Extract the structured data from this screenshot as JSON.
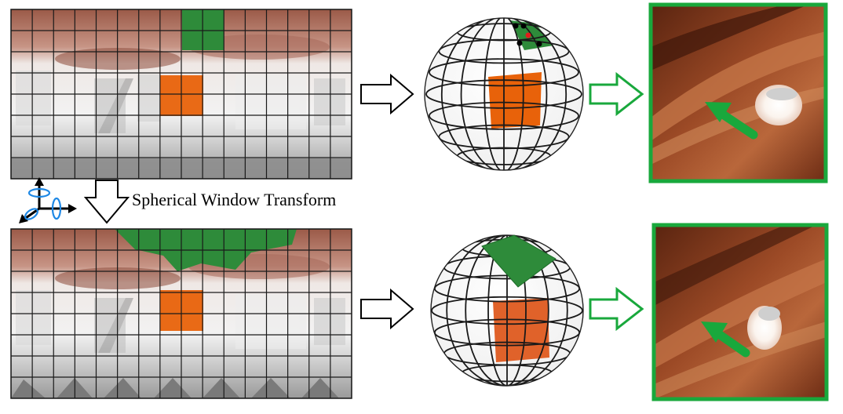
{
  "figure": {
    "transform_label": "Spherical Window Transform"
  },
  "colors": {
    "selected_window": "#2e8b3a",
    "reference_window": "#e8620a",
    "arrow_green": "#19a83c",
    "grid_line": "#1a1a1a",
    "ceiling_wood": "#8a3a1c",
    "wall": "#e9e9e9",
    "floor": "#a7a7a7",
    "keypoint_black": "#000000",
    "keypoint_red": "#e31b1b"
  },
  "icons": {
    "rotation": "rotation-axes-icon",
    "arrow_right": "hollow-arrow-right-icon",
    "arrow_down": "hollow-arrow-down-icon",
    "arrow_green": "green-hollow-arrow-icon",
    "pointer": "green-pointer-arrow-icon"
  },
  "panels": {
    "top_row": "equirectangular-panorama-with-fixed-window",
    "bottom_row": "equirectangular-panorama-with-spherical-window"
  }
}
